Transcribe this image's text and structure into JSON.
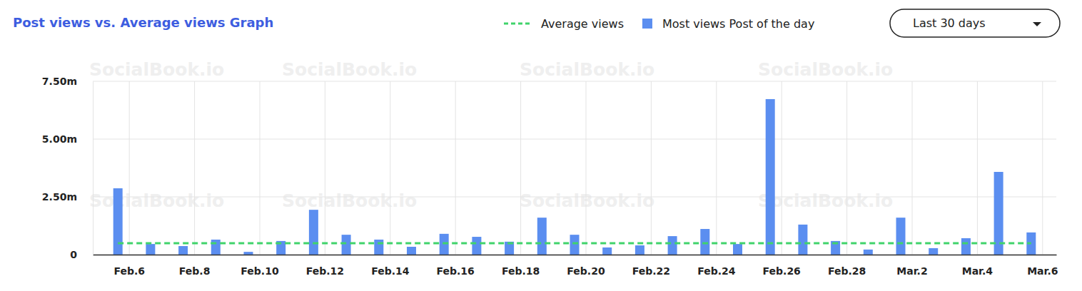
{
  "chart_data": {
    "type": "bar",
    "title": "Post views vs. Average views Graph",
    "dropdown": "Last 30 days",
    "watermark": "SocialBook.io",
    "categories": [
      "Feb.6",
      null,
      "Feb.8",
      null,
      "Feb.10",
      null,
      "Feb.12",
      null,
      "Feb.14",
      null,
      "Feb.16",
      null,
      "Feb.18",
      null,
      "Feb.20",
      null,
      "Feb.22",
      null,
      "Feb.24",
      null,
      "Feb.26",
      null,
      "Feb.28",
      null,
      "Mar.2",
      null,
      "Mar.4",
      null,
      "Mar.6"
    ],
    "series": [
      {
        "name": "Average views",
        "type": "line",
        "line_style": "dashed",
        "color": "#40d36b",
        "values": [
          0.49,
          0.49,
          0.49,
          0.49,
          0.49,
          0.49,
          0.49,
          0.49,
          0.49,
          0.49,
          0.49,
          0.49,
          0.49,
          0.49,
          0.49,
          0.49,
          0.49,
          0.49,
          0.49,
          0.49,
          0.49,
          0.49,
          0.49,
          0.49,
          0.49,
          0.49,
          0.49,
          0.49,
          0.49
        ]
      },
      {
        "name": "Most views Post of the day",
        "type": "bar",
        "color": "#5b8ef0",
        "values": [
          2.87,
          0.46,
          0.37,
          0.65,
          0.12,
          0.59,
          1.94,
          0.86,
          0.65,
          0.34,
          0.9,
          0.77,
          0.56,
          1.6,
          0.86,
          0.31,
          0.4,
          0.8,
          1.11,
          0.46,
          6.73,
          1.3,
          0.59,
          0.22,
          1.6,
          0.28,
          0.71,
          3.58,
          0.96
        ]
      }
    ],
    "ylim": [
      0,
      7.5
    ],
    "yticks": [
      0,
      {
        "value": 2.5,
        "label": "2.50m"
      },
      {
        "value": 5,
        "label": "5.00m"
      },
      {
        "value": 7.5,
        "label": "7.50m"
      }
    ],
    "grid": true,
    "legend": "top-right"
  }
}
